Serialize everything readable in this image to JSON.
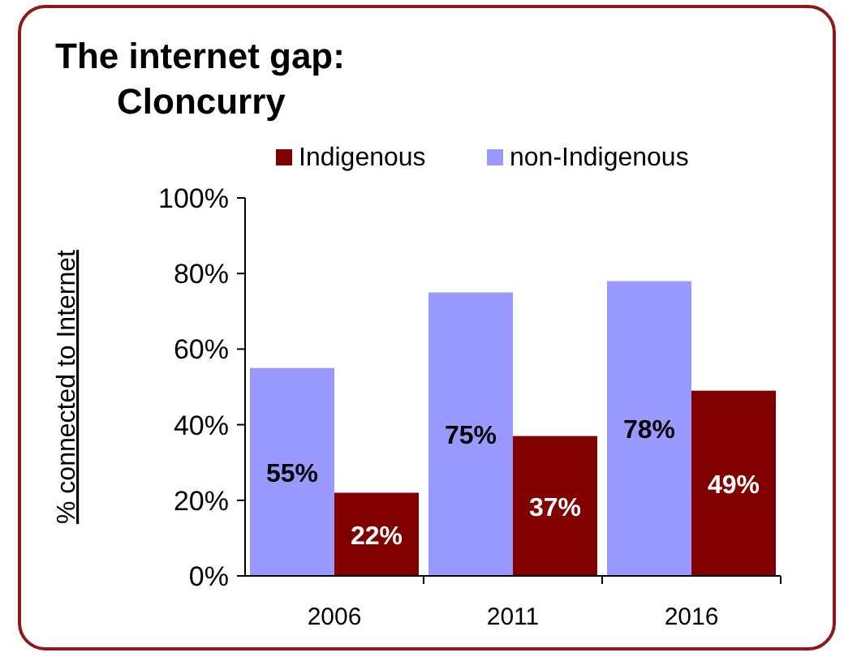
{
  "chart_data": {
    "type": "bar",
    "title": "The internet gap:",
    "subtitle": "Cloncurry",
    "ylabel": "% connected to Internet",
    "categories": [
      "2006",
      "2011",
      "2016"
    ],
    "series": [
      {
        "name": "non-Indigenous",
        "color": "#9999ff",
        "values": [
          55,
          75,
          78
        ],
        "value_labels": [
          "55%",
          "75%",
          "78%"
        ]
      },
      {
        "name": "Indigenous",
        "color": "#800000",
        "values": [
          22,
          37,
          49
        ],
        "value_labels": [
          "22%",
          "37%",
          "49%"
        ]
      }
    ],
    "ylim": [
      0,
      100
    ],
    "yticks": [
      {
        "value": 0,
        "label": "0%"
      },
      {
        "value": 20,
        "label": "20%"
      },
      {
        "value": 40,
        "label": "40%"
      },
      {
        "value": 60,
        "label": "60%"
      },
      {
        "value": 80,
        "label": "80%"
      },
      {
        "value": 100,
        "label": "100%"
      }
    ],
    "grid": false,
    "legend": "top"
  }
}
